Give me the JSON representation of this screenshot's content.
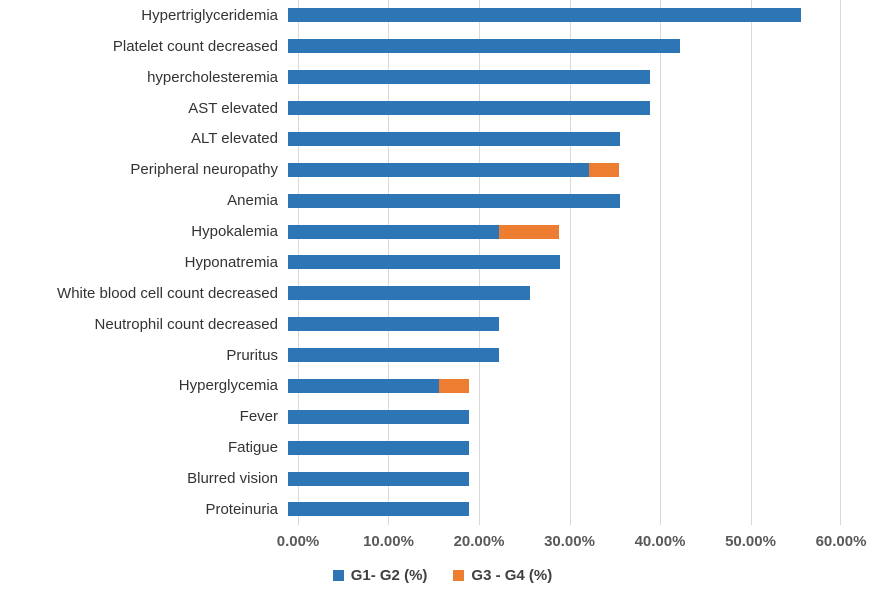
{
  "chart_data": {
    "type": "bar",
    "orientation": "horizontal",
    "stacked": true,
    "title": "",
    "xlabel": "",
    "ylabel": "",
    "grid": true,
    "legend_position": "bottom",
    "xlim": [
      0,
      60
    ],
    "x_tick_labels": [
      "0.00%",
      "10.00%",
      "20.00%",
      "30.00%",
      "40.00%",
      "50.00%",
      "60.00%"
    ],
    "categories": [
      "Hypertriglyceridemia",
      "Platelet count decreased",
      "hypercholesteremia",
      "AST elevated",
      "ALT elevated",
      "Peripheral neuropathy",
      "Anemia",
      "Hypokalemia",
      "Hyponatremia",
      "White blood cell count decreased",
      "Neutrophil count decreased",
      "Pruritus",
      "Hyperglycemia",
      "Fever",
      "Fatigue",
      "Blurred vision",
      "Proteinuria"
    ],
    "series": [
      {
        "name": "G1- G2 (%)",
        "color": "#2E75B6",
        "values": [
          56.7,
          43.3,
          40.0,
          40.0,
          36.7,
          33.3,
          36.7,
          23.3,
          30.0,
          26.7,
          23.3,
          23.3,
          16.7,
          20.0,
          20.0,
          20.0,
          20.0
        ]
      },
      {
        "name": "G3 - G4 (%)",
        "color": "#ED7D31",
        "values": [
          0,
          0,
          0,
          0,
          0,
          3.3,
          0,
          6.7,
          0,
          0,
          0,
          0,
          3.3,
          0,
          0,
          0,
          0
        ]
      }
    ]
  },
  "legend": {
    "items": [
      {
        "label": "G1- G2 (%)",
        "color": "#2E75B6"
      },
      {
        "label": "G3 - G4 (%)",
        "color": "#ED7D31"
      }
    ]
  },
  "colors": {
    "gridline": "#D9D9D9",
    "tick_text": "#595959",
    "category_text": "#333333",
    "background": "#FFFFFF"
  }
}
